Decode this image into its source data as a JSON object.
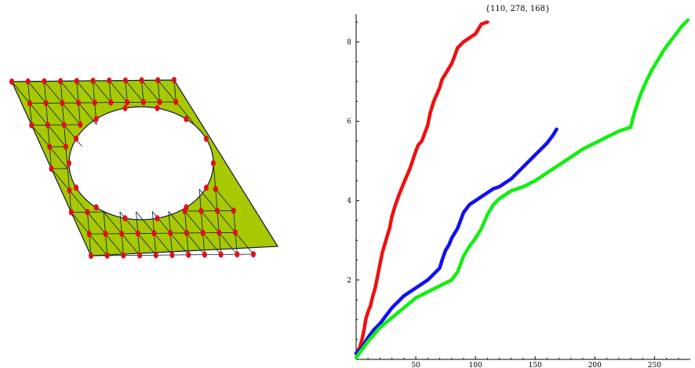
{
  "mesh": {
    "fill_color": "#a8c800",
    "edge_color": "#0a1a3a",
    "node_color": "#e0101a"
  },
  "chart_data": {
    "type": "line",
    "title": "{110, 278, 168}",
    "xlabel": "",
    "ylabel": "",
    "xlim": [
      0,
      280
    ],
    "ylim": [
      0,
      8.7
    ],
    "x_ticks": [
      50,
      100,
      150,
      200,
      250
    ],
    "y_ticks": [
      2,
      4,
      6,
      8
    ],
    "grid": false,
    "legend": "none",
    "series": [
      {
        "color": "#ee1111",
        "x": [
          0,
          3,
          5,
          7,
          8,
          10,
          12,
          14,
          16,
          18,
          20,
          22,
          25,
          28,
          30,
          33,
          36,
          38,
          40,
          45,
          50,
          52,
          55,
          60,
          62,
          65,
          70,
          72,
          75,
          80,
          82,
          85,
          90,
          95,
          100,
          105,
          110
        ],
        "y": [
          0.15,
          0.3,
          0.5,
          0.8,
          1.0,
          1.2,
          1.35,
          1.6,
          1.8,
          2.1,
          2.4,
          2.7,
          3.0,
          3.3,
          3.6,
          3.9,
          4.15,
          4.3,
          4.45,
          4.8,
          5.25,
          5.4,
          5.5,
          5.9,
          6.2,
          6.5,
          6.85,
          7.05,
          7.2,
          7.45,
          7.6,
          7.85,
          8.0,
          8.1,
          8.2,
          8.45,
          8.5
        ]
      },
      {
        "color": "#1111ee",
        "x": [
          0,
          5,
          10,
          15,
          20,
          25,
          30,
          35,
          40,
          45,
          50,
          55,
          60,
          65,
          70,
          72,
          75,
          78,
          80,
          85,
          90,
          95,
          100,
          105,
          110,
          115,
          120,
          125,
          130,
          135,
          140,
          145,
          150,
          155,
          160,
          165,
          168
        ],
        "y": [
          0.15,
          0.3,
          0.55,
          0.75,
          0.9,
          1.1,
          1.3,
          1.45,
          1.6,
          1.7,
          1.8,
          1.9,
          2.0,
          2.15,
          2.3,
          2.5,
          2.75,
          2.9,
          3.05,
          3.3,
          3.7,
          3.9,
          4.0,
          4.1,
          4.2,
          4.3,
          4.35,
          4.45,
          4.55,
          4.7,
          4.85,
          5.0,
          5.15,
          5.3,
          5.45,
          5.65,
          5.8
        ]
      },
      {
        "color": "#11ee11",
        "x": [
          0,
          10,
          20,
          30,
          40,
          50,
          60,
          70,
          80,
          85,
          90,
          95,
          100,
          105,
          110,
          115,
          120,
          125,
          130,
          140,
          150,
          160,
          170,
          180,
          190,
          200,
          210,
          220,
          230,
          233,
          238,
          243,
          248,
          253,
          258,
          263,
          268,
          273,
          278
        ],
        "y": [
          0.05,
          0.45,
          0.8,
          1.05,
          1.3,
          1.55,
          1.7,
          1.85,
          2.0,
          2.2,
          2.6,
          2.85,
          3.05,
          3.3,
          3.65,
          3.9,
          4.05,
          4.15,
          4.25,
          4.35,
          4.5,
          4.7,
          4.9,
          5.1,
          5.3,
          5.45,
          5.6,
          5.75,
          5.85,
          6.2,
          6.65,
          7.0,
          7.3,
          7.55,
          7.8,
          8.0,
          8.2,
          8.4,
          8.55
        ]
      }
    ]
  }
}
